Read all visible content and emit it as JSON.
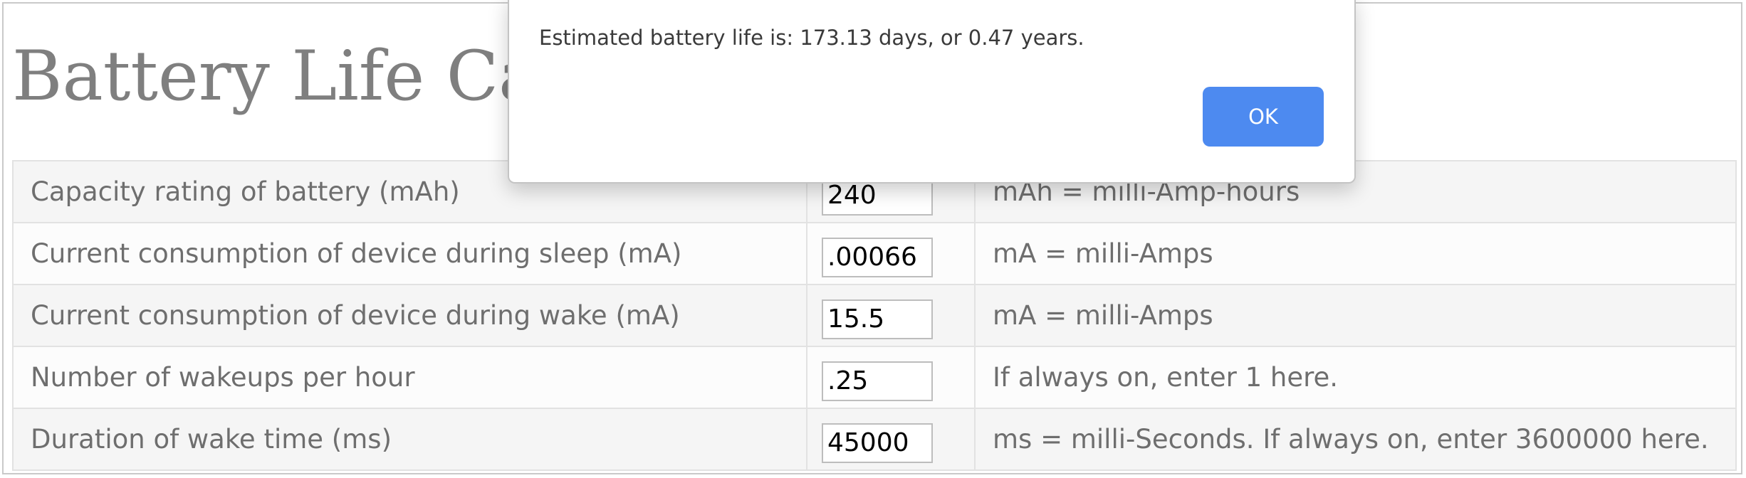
{
  "page": {
    "title": "Battery Life Calculator"
  },
  "table": {
    "rows": [
      {
        "label": "Capacity rating of battery (mAh)",
        "value": "240",
        "note": "mAh = milli-Amp-hours"
      },
      {
        "label": "Current consumption of device during sleep (mA)",
        "value": ".00066",
        "note": "mA = milli-Amps"
      },
      {
        "label": "Current consumption of device during wake (mA)",
        "value": "15.5",
        "note": "mA = milli-Amps"
      },
      {
        "label": "Number of wakeups per hour",
        "value": ".25",
        "note": "If always on, enter 1 here."
      },
      {
        "label": "Duration of wake time (ms)",
        "value": "45000",
        "note": "ms = milli-Seconds. If always on, enter 3600000 here."
      }
    ]
  },
  "alert": {
    "message": "Estimated battery life is: 173.13 days, or 0.47 years.",
    "ok_label": "OK"
  },
  "colors": {
    "ok_button": "#4d8af0",
    "title_text": "#7f7f7f",
    "table_text": "#6e6e6e"
  }
}
